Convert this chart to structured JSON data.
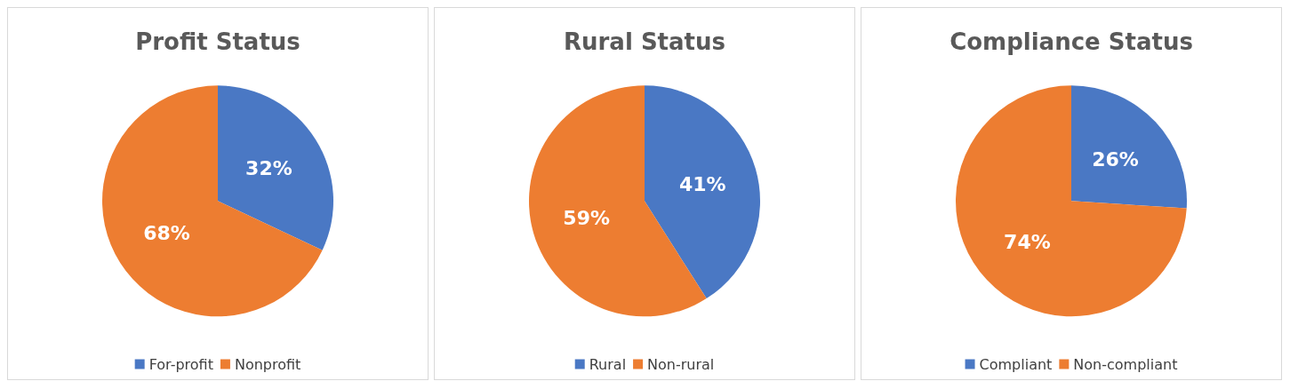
{
  "chart_data": [
    {
      "type": "pie",
      "title": "Profit Status",
      "categories": [
        "For-profit",
        "Nonprofit"
      ],
      "values": [
        32,
        68
      ],
      "value_labels": [
        "32%",
        "68%"
      ],
      "colors": [
        "#4a78c4",
        "#ed7d31"
      ],
      "legend": "bottom"
    },
    {
      "type": "pie",
      "title": "Rural Status",
      "categories": [
        "Rural",
        "Non-rural"
      ],
      "values": [
        41,
        59
      ],
      "value_labels": [
        "41%",
        "59%"
      ],
      "colors": [
        "#4a78c4",
        "#ed7d31"
      ],
      "legend": "bottom"
    },
    {
      "type": "pie",
      "title": "Compliance Status",
      "categories": [
        "Compliant",
        "Non-compliant"
      ],
      "values": [
        26,
        74
      ],
      "value_labels": [
        "26%",
        "74%"
      ],
      "colors": [
        "#4a78c4",
        "#ed7d31"
      ],
      "legend": "bottom"
    }
  ]
}
